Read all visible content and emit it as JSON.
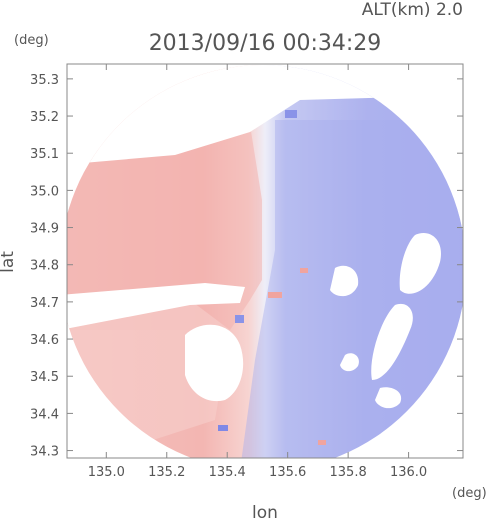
{
  "header": {
    "altitude": "ALT(km) 2.0",
    "timestamp": "2013/09/16 00:34:29",
    "lat_unit": "(deg)",
    "lon_unit": "(deg)"
  },
  "chart_data": {
    "type": "heatmap",
    "xlabel": "lon",
    "ylabel": "lat",
    "xlim": [
      134.87,
      136.18
    ],
    "ylim": [
      34.28,
      35.34
    ],
    "x_ticks": [
      "135.0",
      "135.2",
      "135.4",
      "135.6",
      "135.8",
      "136.0"
    ],
    "x_tick_values": [
      135.0,
      135.2,
      135.4,
      135.6,
      135.8,
      136.0
    ],
    "y_ticks": [
      "34.3",
      "34.4",
      "34.5",
      "34.6",
      "34.7",
      "34.8",
      "34.9",
      "35.0",
      "35.1",
      "35.2",
      "35.3"
    ],
    "y_tick_values": [
      34.3,
      34.4,
      34.5,
      34.6,
      34.7,
      34.8,
      34.9,
      35.0,
      35.1,
      35.2,
      35.3
    ],
    "grid": true,
    "colors": {
      "positive": "#f0a8a4",
      "negative": "#9fa6ee",
      "near_zero": "#eeeef8"
    }
  }
}
